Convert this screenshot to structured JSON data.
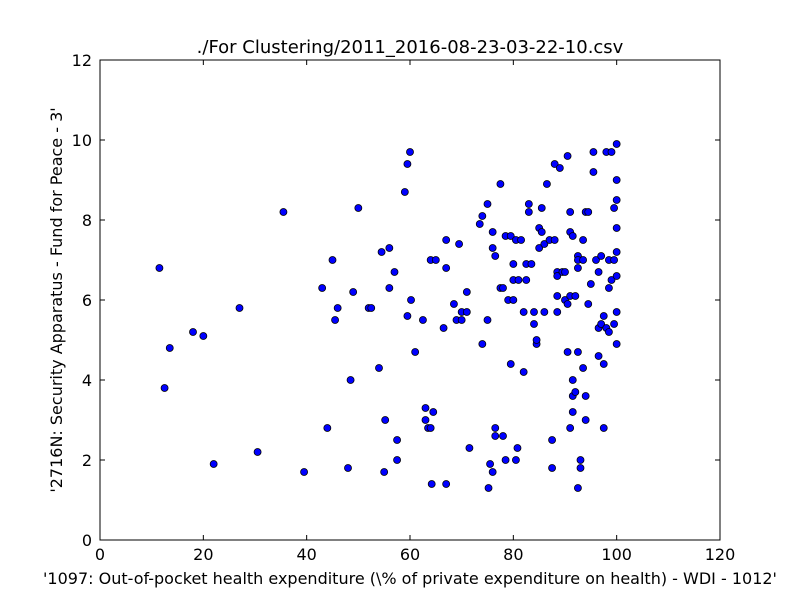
{
  "chart_data": {
    "type": "scatter",
    "title": "./For Clustering/2011_2016-08-23-03-22-10.csv",
    "xlabel": "'1097: Out-of-pocket health expenditure  (\\% of private expenditure on health) - WDI - 1012'",
    "ylabel": "'2716N: Security Apparatus - Fund for Peace - 3'",
    "xlim": [
      0,
      120
    ],
    "ylim": [
      0,
      12
    ],
    "xticks": [
      "0",
      "20",
      "40",
      "60",
      "80",
      "100",
      "120"
    ],
    "yticks": [
      "0",
      "2",
      "4",
      "6",
      "8",
      "10",
      "12"
    ],
    "grid": false,
    "marker_color": "#0000ff",
    "points": [
      [
        11.5,
        6.8
      ],
      [
        12.5,
        3.8
      ],
      [
        13.5,
        4.8
      ],
      [
        18,
        5.2
      ],
      [
        20,
        5.1
      ],
      [
        22,
        1.9
      ],
      [
        27,
        5.8
      ],
      [
        30.5,
        2.2
      ],
      [
        35.5,
        8.2
      ],
      [
        39.5,
        1.7
      ],
      [
        43,
        6.3
      ],
      [
        44,
        2.8
      ],
      [
        45,
        7.0
      ],
      [
        45.5,
        5.5
      ],
      [
        46,
        5.8
      ],
      [
        48,
        1.8
      ],
      [
        48.5,
        4.0
      ],
      [
        49,
        6.2
      ],
      [
        50,
        8.3
      ],
      [
        52,
        5.8
      ],
      [
        52.5,
        5.8
      ],
      [
        54,
        4.3
      ],
      [
        54.5,
        7.2
      ],
      [
        55,
        1.7
      ],
      [
        55.2,
        3.0
      ],
      [
        56,
        7.3
      ],
      [
        56,
        6.3
      ],
      [
        57,
        6.7
      ],
      [
        57.5,
        2.0
      ],
      [
        57.5,
        2.5
      ],
      [
        59,
        8.7
      ],
      [
        59.5,
        9.4
      ],
      [
        59.5,
        5.6
      ],
      [
        60,
        9.7
      ],
      [
        60.2,
        6.0
      ],
      [
        61,
        4.7
      ],
      [
        62.5,
        5.5
      ],
      [
        63,
        3.3
      ],
      [
        63,
        3.0
      ],
      [
        63.5,
        2.8
      ],
      [
        64,
        7.0
      ],
      [
        64,
        2.8
      ],
      [
        64.2,
        1.4
      ],
      [
        64.5,
        3.2
      ],
      [
        65,
        7.0
      ],
      [
        66.5,
        5.3
      ],
      [
        67,
        7.5
      ],
      [
        67,
        6.8
      ],
      [
        67,
        1.4
      ],
      [
        68.5,
        5.9
      ],
      [
        69,
        5.5
      ],
      [
        69.5,
        7.4
      ],
      [
        70,
        5.5
      ],
      [
        70,
        5.7
      ],
      [
        71,
        5.7
      ],
      [
        71,
        6.2
      ],
      [
        71.5,
        2.3
      ],
      [
        73.5,
        7.9
      ],
      [
        74,
        8.1
      ],
      [
        74,
        4.9
      ],
      [
        75,
        8.4
      ],
      [
        75,
        5.5
      ],
      [
        75.2,
        1.3
      ],
      [
        75.5,
        1.9
      ],
      [
        76,
        7.7
      ],
      [
        76,
        7.3
      ],
      [
        76,
        1.7
      ],
      [
        76.5,
        7.1
      ],
      [
        76.5,
        2.8
      ],
      [
        76.5,
        2.6
      ],
      [
        77.5,
        8.9
      ],
      [
        77.5,
        6.3
      ],
      [
        78,
        6.3
      ],
      [
        78,
        2.6
      ],
      [
        78.5,
        2.0
      ],
      [
        78.5,
        7.6
      ],
      [
        79,
        6.0
      ],
      [
        79.5,
        4.4
      ],
      [
        79.5,
        7.6
      ],
      [
        80,
        6.9
      ],
      [
        80,
        6.5
      ],
      [
        80,
        6.0
      ],
      [
        80.5,
        7.5
      ],
      [
        80.5,
        2.0
      ],
      [
        80.8,
        2.3
      ],
      [
        81,
        6.5
      ],
      [
        81.5,
        7.5
      ],
      [
        82,
        5.7
      ],
      [
        82,
        4.2
      ],
      [
        82.5,
        6.5
      ],
      [
        82.5,
        6.9
      ],
      [
        83,
        8.2
      ],
      [
        83,
        8.4
      ],
      [
        83.5,
        6.9
      ],
      [
        84,
        5.7
      ],
      [
        84,
        5.4
      ],
      [
        84.5,
        4.9
      ],
      [
        84.5,
        5.0
      ],
      [
        85,
        7.8
      ],
      [
        85,
        7.3
      ],
      [
        85.5,
        8.3
      ],
      [
        85.5,
        7.7
      ],
      [
        86,
        7.4
      ],
      [
        86,
        5.7
      ],
      [
        86.5,
        8.9
      ],
      [
        87,
        7.5
      ],
      [
        87.5,
        1.8
      ],
      [
        87.5,
        2.5
      ],
      [
        88,
        9.4
      ],
      [
        88,
        7.5
      ],
      [
        88.5,
        6.7
      ],
      [
        88.5,
        6.6
      ],
      [
        88.5,
        6.1
      ],
      [
        88.5,
        5.7
      ],
      [
        89,
        9.3
      ],
      [
        89.5,
        6.7
      ],
      [
        90,
        6.7
      ],
      [
        90,
        6.0
      ],
      [
        90.5,
        9.6
      ],
      [
        90.5,
        5.9
      ],
      [
        90.5,
        4.7
      ],
      [
        91,
        2.8
      ],
      [
        91,
        6.1
      ],
      [
        91,
        8.2
      ],
      [
        91,
        7.7
      ],
      [
        91.5,
        7.6
      ],
      [
        91.5,
        4.0
      ],
      [
        91.5,
        3.6
      ],
      [
        91.5,
        3.2
      ],
      [
        92,
        6.1
      ],
      [
        92,
        3.7
      ],
      [
        92.5,
        7.1
      ],
      [
        92.5,
        7.0
      ],
      [
        92.5,
        6.8
      ],
      [
        92.5,
        4.7
      ],
      [
        92.5,
        1.3
      ],
      [
        93,
        2.0
      ],
      [
        93,
        1.8
      ],
      [
        93.5,
        7.5
      ],
      [
        93.5,
        7.0
      ],
      [
        93.5,
        4.3
      ],
      [
        94,
        8.2
      ],
      [
        94,
        3.6
      ],
      [
        94,
        3.0
      ],
      [
        94.5,
        8.2
      ],
      [
        94.5,
        5.9
      ],
      [
        95,
        6.4
      ],
      [
        95.5,
        9.7
      ],
      [
        95.5,
        9.2
      ],
      [
        96,
        7.0
      ],
      [
        96.5,
        6.7
      ],
      [
        96.5,
        5.3
      ],
      [
        96.5,
        4.6
      ],
      [
        97,
        7.1
      ],
      [
        97,
        5.4
      ],
      [
        97.5,
        5.6
      ],
      [
        97.5,
        4.4
      ],
      [
        97.5,
        2.8
      ],
      [
        98,
        9.7
      ],
      [
        98,
        5.3
      ],
      [
        98.5,
        7.0
      ],
      [
        98.5,
        6.3
      ],
      [
        98.5,
        5.2
      ],
      [
        99,
        9.7
      ],
      [
        99,
        6.5
      ],
      [
        99.5,
        8.3
      ],
      [
        99.5,
        7.0
      ],
      [
        99.5,
        5.4
      ],
      [
        100,
        9.9
      ],
      [
        100,
        9.0
      ],
      [
        100,
        8.5
      ],
      [
        100,
        7.8
      ],
      [
        100,
        7.2
      ],
      [
        100,
        6.6
      ],
      [
        100,
        5.7
      ],
      [
        100,
        4.9
      ]
    ]
  }
}
